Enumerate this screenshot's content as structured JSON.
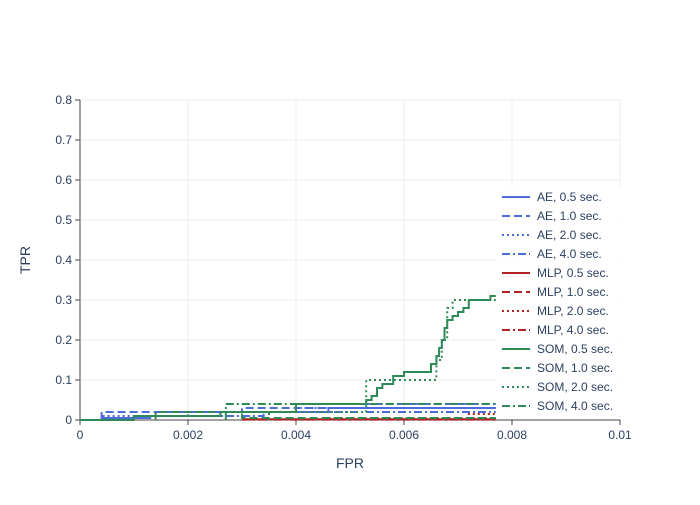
{
  "chart_data": {
    "type": "line",
    "xlabel": "FPR",
    "ylabel": "TPR",
    "xlim": [
      0,
      0.01
    ],
    "ylim": [
      0,
      0.8
    ],
    "x_ticks": [
      0,
      0.002,
      0.004,
      0.006,
      0.008,
      0.01
    ],
    "x_tick_labels": [
      "0",
      "0.002",
      "0.004",
      "0.006",
      "0.008",
      "0.01"
    ],
    "y_ticks": [
      0,
      0.1,
      0.2,
      0.3,
      0.4,
      0.5,
      0.6,
      0.7,
      0.8
    ],
    "y_tick_labels": [
      "0",
      "0.1",
      "0.2",
      "0.3",
      "0.4",
      "0.5",
      "0.6",
      "0.7",
      "0.8"
    ],
    "grid": true,
    "legend_position": "right",
    "colors": {
      "AE": "#4c6bdc",
      "MLP": "#b22222",
      "SOM": "#2e8b57"
    },
    "series": [
      {
        "name": "AE, 0.5 sec.",
        "color": "#4c6bdc",
        "dash": "solid",
        "x": [
          0.0004,
          0.0004,
          0.0013,
          0.0013,
          0.0026,
          0.0026,
          0.0046,
          0.0046,
          0.0077
        ],
        "y": [
          0,
          0.005,
          0.005,
          0.01,
          0.01,
          0.02,
          0.02,
          0.03,
          0.03
        ]
      },
      {
        "name": "AE, 1.0 sec.",
        "color": "#4c6bdc",
        "dash": "dash",
        "x": [
          0.0004,
          0.0004,
          0.001,
          0.001,
          0.003,
          0.003,
          0.005,
          0.005,
          0.0077
        ],
        "y": [
          0,
          0.02,
          0.02,
          0.02,
          0.02,
          0.03,
          0.03,
          0.04,
          0.04
        ]
      },
      {
        "name": "AE, 2.0 sec.",
        "color": "#4c6bdc",
        "dash": "dot",
        "x": [
          0.0004,
          0.0004,
          0.002,
          0.002,
          0.004,
          0.004,
          0.0077
        ],
        "y": [
          0,
          0.01,
          0.01,
          0.02,
          0.02,
          0.03,
          0.03
        ]
      },
      {
        "name": "AE, 4.0 sec.",
        "color": "#4c6bdc",
        "dash": "dashdot",
        "x": [
          0.001,
          0.001,
          0.0034,
          0.0034,
          0.0077
        ],
        "y": [
          0,
          0.01,
          0.01,
          0.02,
          0.02
        ]
      },
      {
        "name": "MLP, 0.5 sec.",
        "color": "#b22222",
        "dash": "solid",
        "x": [
          0.003,
          0.0077
        ],
        "y": [
          0.002,
          0.002
        ]
      },
      {
        "name": "MLP, 1.0 sec.",
        "color": "#b22222",
        "dash": "dash",
        "x": [
          0.0045,
          0.0077
        ],
        "y": [
          0.004,
          0.004
        ]
      },
      {
        "name": "MLP, 2.0 sec.",
        "color": "#b22222",
        "dash": "dot",
        "x": [
          0.0072,
          0.0072,
          0.0077
        ],
        "y": [
          0,
          0.015,
          0.015
        ]
      },
      {
        "name": "MLP, 4.0 sec.",
        "color": "#b22222",
        "dash": "dashdot",
        "x": [
          0.003,
          0.0077
        ],
        "y": [
          0.001,
          0.001
        ]
      },
      {
        "name": "SOM, 0.5 sec.",
        "color": "#2e8b57",
        "dash": "solid",
        "x": [
          0,
          0.001,
          0.001,
          0.0026,
          0.0026,
          0.004,
          0.004,
          0.0053,
          0.0053,
          0.0054,
          0.0054,
          0.0055,
          0.0055,
          0.0056,
          0.0056,
          0.0058,
          0.0058,
          0.006,
          0.006,
          0.0065,
          0.0065,
          0.0066,
          0.0066,
          0.00665,
          0.00665,
          0.0067,
          0.0067,
          0.00675,
          0.00675,
          0.0068,
          0.0068,
          0.0069,
          0.0069,
          0.007,
          0.007,
          0.0071,
          0.0071,
          0.0072,
          0.0072,
          0.0076,
          0.0076,
          0.0077
        ],
        "y": [
          0,
          0,
          0.01,
          0.01,
          0.02,
          0.02,
          0.04,
          0.04,
          0.05,
          0.05,
          0.06,
          0.06,
          0.08,
          0.08,
          0.09,
          0.09,
          0.11,
          0.11,
          0.12,
          0.12,
          0.14,
          0.14,
          0.16,
          0.16,
          0.18,
          0.18,
          0.2,
          0.2,
          0.23,
          0.23,
          0.25,
          0.25,
          0.26,
          0.26,
          0.27,
          0.27,
          0.28,
          0.28,
          0.3,
          0.3,
          0.31,
          0.31
        ]
      },
      {
        "name": "SOM, 1.0 sec.",
        "color": "#2e8b57",
        "dash": "dash",
        "x": [
          0.0014,
          0.0014,
          0.003,
          0.003,
          0.0077
        ],
        "y": [
          0,
          0.02,
          0.02,
          0.005,
          0.005
        ]
      },
      {
        "name": "SOM, 2.0 sec.",
        "color": "#2e8b57",
        "dash": "dot",
        "x": [
          0.0035,
          0.0035,
          0.0053,
          0.0053,
          0.0066,
          0.0066,
          0.0067,
          0.0067,
          0.0068,
          0.0068,
          0.0069,
          0.0069,
          0.0077
        ],
        "y": [
          0,
          0.02,
          0.02,
          0.1,
          0.1,
          0.15,
          0.15,
          0.2,
          0.2,
          0.28,
          0.28,
          0.3,
          0.3
        ]
      },
      {
        "name": "SOM, 4.0 sec.",
        "color": "#2e8b57",
        "dash": "dashdot",
        "x": [
          0.0027,
          0.0027,
          0.0077
        ],
        "y": [
          0,
          0.04,
          0.04
        ]
      }
    ]
  }
}
